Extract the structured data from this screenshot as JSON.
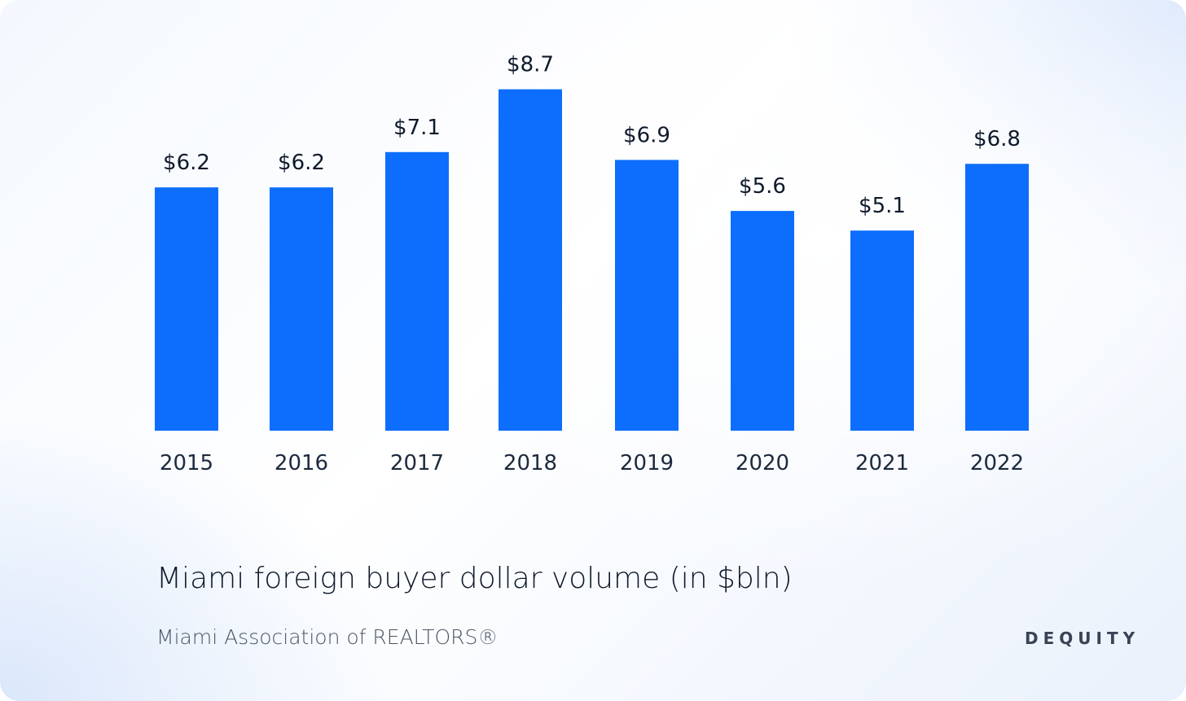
{
  "chart_data": {
    "type": "bar",
    "categories": [
      "2015",
      "2016",
      "2017",
      "2018",
      "2019",
      "2020",
      "2021",
      "2022"
    ],
    "values": [
      6.2,
      6.2,
      7.1,
      8.7,
      6.9,
      5.6,
      5.1,
      6.8
    ],
    "value_labels": [
      "$6.2",
      "$6.2",
      "$7.1",
      "$8.7",
      "$6.9",
      "$5.6",
      "$5.1",
      "$6.8"
    ],
    "title": "Miami foreign buyer dollar volume (in $bln)",
    "source": "Miami Association of REALTORS®",
    "xlabel": "",
    "ylabel": "",
    "grid": false,
    "legend": "none",
    "bar_color": "#0d6efd"
  },
  "brand": {
    "logo_text": "DEQUITY"
  }
}
